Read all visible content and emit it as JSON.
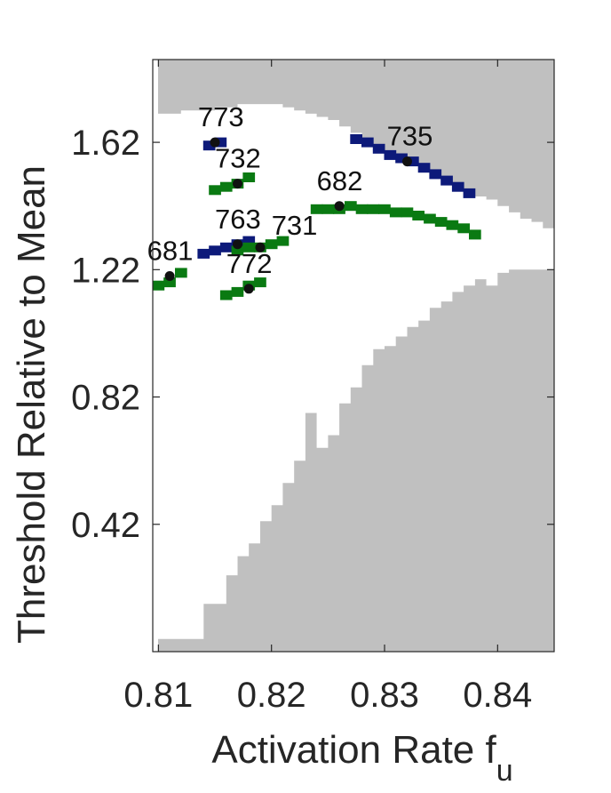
{
  "chart_data": {
    "type": "heatmap",
    "xlabel": "Activation Rate f",
    "xlabel_subscript": "u",
    "ylabel": "Threshold Relative to Mean",
    "xlim": [
      0.8095,
      0.845
    ],
    "ylim": [
      0.02,
      1.88
    ],
    "xticks": [
      0.81,
      0.82,
      0.83,
      0.84
    ],
    "xtick_labels": [
      "0.81",
      "0.82",
      "0.83",
      "0.84"
    ],
    "yticks": [
      0.42,
      0.82,
      1.22,
      1.62
    ],
    "ytick_labels": [
      "0.42",
      "0.82",
      "1.22",
      "1.62"
    ],
    "colors": {
      "gray_region": "#c0c0c0",
      "blue_series": "#0d1a7a",
      "green_series": "#0a7a12",
      "point": "#111111",
      "axis": "#262626"
    },
    "gray_regions": {
      "description_key": "upper-and-lower-excluded",
      "upper_boundary": [
        [
          0.8095,
          1.71
        ],
        [
          0.811,
          1.71
        ],
        [
          0.812,
          1.72
        ],
        [
          0.813,
          1.72
        ],
        [
          0.814,
          1.72
        ],
        [
          0.815,
          1.73
        ],
        [
          0.816,
          1.73
        ],
        [
          0.817,
          1.74
        ],
        [
          0.818,
          1.74
        ],
        [
          0.819,
          1.74
        ],
        [
          0.82,
          1.74
        ],
        [
          0.821,
          1.73
        ],
        [
          0.822,
          1.72
        ],
        [
          0.823,
          1.71
        ],
        [
          0.824,
          1.7
        ],
        [
          0.825,
          1.69
        ],
        [
          0.826,
          1.67
        ],
        [
          0.827,
          1.65
        ],
        [
          0.828,
          1.63
        ],
        [
          0.829,
          1.61
        ],
        [
          0.83,
          1.59
        ],
        [
          0.831,
          1.57
        ],
        [
          0.832,
          1.55
        ],
        [
          0.833,
          1.53
        ],
        [
          0.834,
          1.51
        ],
        [
          0.835,
          1.49
        ],
        [
          0.836,
          1.47
        ],
        [
          0.837,
          1.46
        ],
        [
          0.838,
          1.45
        ],
        [
          0.839,
          1.44
        ],
        [
          0.84,
          1.42
        ],
        [
          0.841,
          1.4
        ],
        [
          0.842,
          1.38
        ],
        [
          0.843,
          1.37
        ],
        [
          0.844,
          1.35
        ],
        [
          0.845,
          1.34
        ]
      ],
      "lower_boundary": [
        [
          0.8095,
          0.06
        ],
        [
          0.811,
          0.06
        ],
        [
          0.812,
          0.06
        ],
        [
          0.813,
          0.06
        ],
        [
          0.814,
          0.17
        ],
        [
          0.815,
          0.17
        ],
        [
          0.816,
          0.26
        ],
        [
          0.817,
          0.32
        ],
        [
          0.818,
          0.36
        ],
        [
          0.819,
          0.43
        ],
        [
          0.82,
          0.48
        ],
        [
          0.821,
          0.55
        ],
        [
          0.822,
          0.62
        ],
        [
          0.823,
          0.77
        ],
        [
          0.824,
          0.66
        ],
        [
          0.825,
          0.7
        ],
        [
          0.826,
          0.8
        ],
        [
          0.827,
          0.85
        ],
        [
          0.828,
          0.92
        ],
        [
          0.829,
          0.97
        ],
        [
          0.83,
          0.98
        ],
        [
          0.831,
          1.01
        ],
        [
          0.832,
          1.04
        ],
        [
          0.833,
          1.06
        ],
        [
          0.834,
          1.1
        ],
        [
          0.835,
          1.12
        ],
        [
          0.836,
          1.15
        ],
        [
          0.837,
          1.17
        ],
        [
          0.838,
          1.19
        ],
        [
          0.839,
          1.17
        ],
        [
          0.84,
          1.21
        ],
        [
          0.841,
          1.22
        ],
        [
          0.842,
          1.22
        ],
        [
          0.843,
          1.22
        ],
        [
          0.844,
          1.22
        ],
        [
          0.845,
          1.22
        ]
      ]
    },
    "series": [
      {
        "color_key": "blue_series",
        "cells": [
          [
            0.8145,
            1.61
          ],
          [
            0.8155,
            1.62
          ],
          [
            0.814,
            1.27
          ],
          [
            0.815,
            1.28
          ],
          [
            0.816,
            1.29
          ],
          [
            0.817,
            1.3
          ],
          [
            0.818,
            1.31
          ],
          [
            0.8275,
            1.63
          ],
          [
            0.8285,
            1.62
          ],
          [
            0.8295,
            1.6
          ],
          [
            0.8305,
            1.58
          ],
          [
            0.8315,
            1.57
          ],
          [
            0.8325,
            1.56
          ],
          [
            0.8335,
            1.54
          ],
          [
            0.8345,
            1.52
          ],
          [
            0.8355,
            1.5
          ],
          [
            0.8365,
            1.48
          ],
          [
            0.8375,
            1.46
          ]
        ]
      },
      {
        "color_key": "green_series",
        "cells": [
          [
            0.815,
            1.47
          ],
          [
            0.816,
            1.48
          ],
          [
            0.817,
            1.49
          ],
          [
            0.818,
            1.51
          ],
          [
            0.817,
            1.28
          ],
          [
            0.818,
            1.29
          ],
          [
            0.819,
            1.29
          ],
          [
            0.82,
            1.3
          ],
          [
            0.821,
            1.31
          ],
          [
            0.81,
            1.17
          ],
          [
            0.811,
            1.18
          ],
          [
            0.812,
            1.21
          ],
          [
            0.816,
            1.14
          ],
          [
            0.817,
            1.15
          ],
          [
            0.818,
            1.17
          ],
          [
            0.819,
            1.18
          ],
          [
            0.824,
            1.41
          ],
          [
            0.825,
            1.41
          ],
          [
            0.826,
            1.41
          ],
          [
            0.827,
            1.42
          ],
          [
            0.828,
            1.41
          ],
          [
            0.829,
            1.41
          ],
          [
            0.83,
            1.41
          ],
          [
            0.831,
            1.4
          ],
          [
            0.832,
            1.4
          ],
          [
            0.833,
            1.39
          ],
          [
            0.834,
            1.38
          ],
          [
            0.835,
            1.37
          ],
          [
            0.836,
            1.36
          ],
          [
            0.837,
            1.35
          ],
          [
            0.838,
            1.33
          ]
        ]
      }
    ],
    "points": [
      {
        "label": "773",
        "x": 0.815,
        "y": 1.62,
        "label_dx": -0.0015,
        "label_dy": 0.05
      },
      {
        "label": "735",
        "x": 0.832,
        "y": 1.56,
        "label_dx": -0.0018,
        "label_dy": 0.05
      },
      {
        "label": "732",
        "x": 0.817,
        "y": 1.49,
        "label_dx": -0.002,
        "label_dy": 0.05
      },
      {
        "label": "682",
        "x": 0.826,
        "y": 1.42,
        "label_dx": -0.002,
        "label_dy": 0.05
      },
      {
        "label": "763",
        "x": 0.817,
        "y": 1.3,
        "label_dx": -0.002,
        "label_dy": 0.05
      },
      {
        "label": "731",
        "x": 0.819,
        "y": 1.29,
        "label_dx": 0.001,
        "label_dy": 0.04
      },
      {
        "label": "681",
        "x": 0.811,
        "y": 1.2,
        "label_dx": -0.002,
        "label_dy": 0.05
      },
      {
        "label": "772",
        "x": 0.818,
        "y": 1.16,
        "label_dx": -0.002,
        "label_dy": 0.05
      }
    ]
  }
}
